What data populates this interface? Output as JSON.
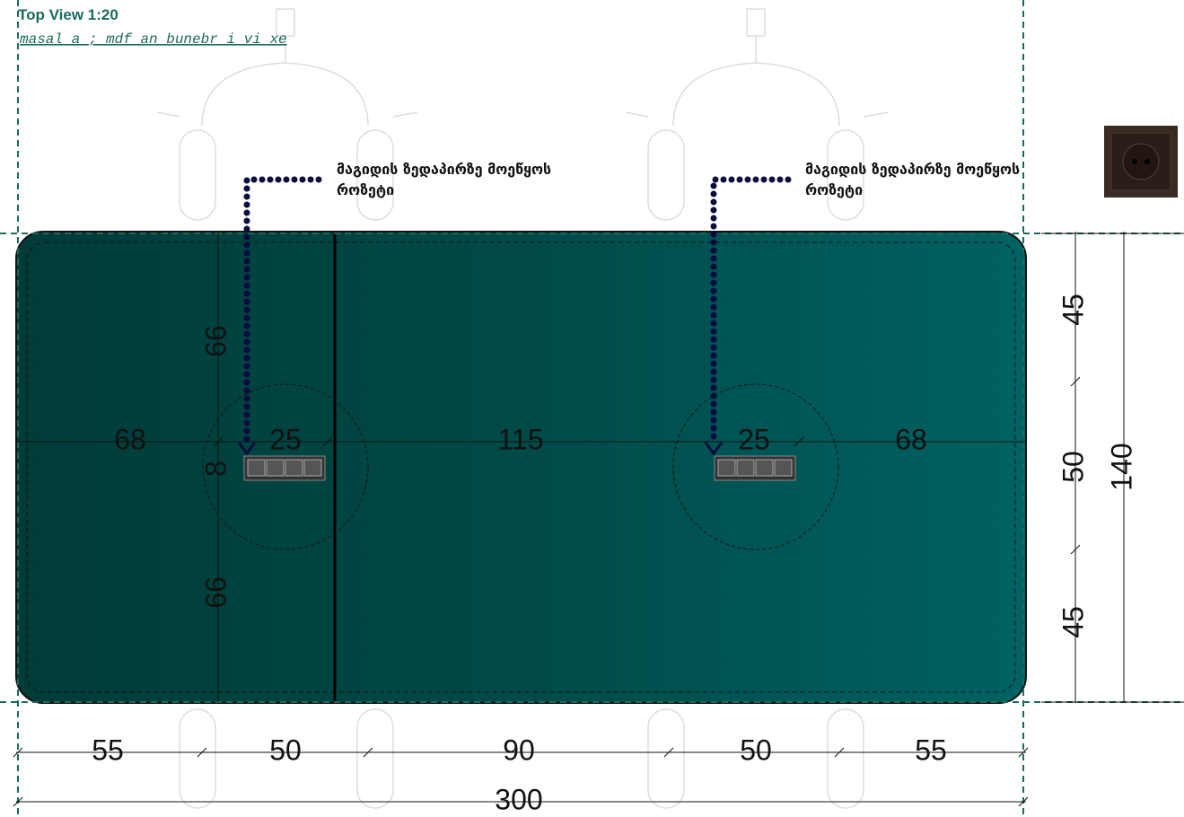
{
  "header": {
    "title": "Top View  1:20",
    "subtitle": "masal a ; mdf an bunebr i vi xe"
  },
  "annotations": [
    {
      "lines": [
        "მაგიდის ზედაპირზე მოეწყოს",
        "როზეტი"
      ]
    },
    {
      "lines": [
        "მაგიდის ზედაპირზე მოეწყოს",
        "როზეტი"
      ]
    }
  ],
  "dimensions": {
    "horizontal": [
      "68",
      "25",
      "115",
      "25",
      "68"
    ],
    "left": [
      "66",
      "8",
      "66"
    ],
    "right": [
      "45",
      "50",
      "45"
    ],
    "right_total": "140",
    "bottom": [
      "55",
      "50",
      "90",
      "50",
      "55"
    ],
    "bottom_total": "300"
  }
}
